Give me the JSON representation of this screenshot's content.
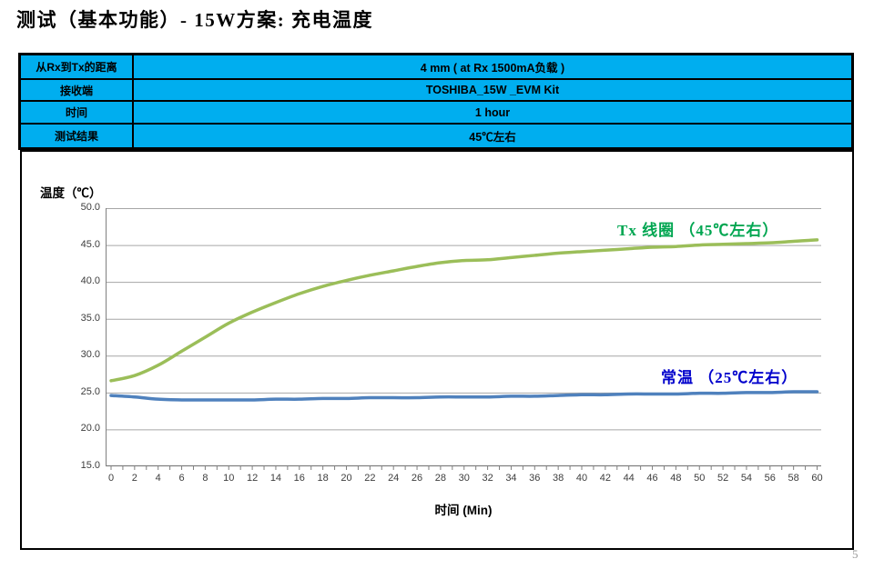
{
  "title": "测试（基本功能）- 15W方案: 充电温度",
  "page_number": "5",
  "info_table": {
    "fill_color": "#00AEEF",
    "rows": [
      {
        "label": "从Rx到Tx的距离",
        "value": "4 mm ( at Rx 1500mA负载 )"
      },
      {
        "label": "接收端",
        "value": "TOSHIBA_15W _EVM Kit"
      },
      {
        "label": "时间",
        "value": "1 hour"
      },
      {
        "label": "测试结果",
        "value": "45℃左右"
      }
    ]
  },
  "chart_data": {
    "type": "line",
    "title": "",
    "xlabel": "时间 (Min)",
    "ylabel": "温度（℃）",
    "ylim": [
      15,
      50
    ],
    "ytick_step": 5,
    "xtick_step": 2,
    "minor_xtick_step": 1,
    "grid": "horizontal",
    "legend_position": "none",
    "axis_color": "#808080",
    "grid_color": "#A6A6A6",
    "x": [
      0,
      2,
      4,
      6,
      8,
      10,
      12,
      14,
      16,
      18,
      20,
      22,
      24,
      26,
      28,
      30,
      32,
      34,
      36,
      38,
      40,
      42,
      44,
      46,
      48,
      50,
      52,
      54,
      56,
      58,
      60
    ],
    "series": [
      {
        "name": "Tx 线圈",
        "color": "#9BBE59",
        "values": [
          26.6,
          27.3,
          28.7,
          30.6,
          32.5,
          34.4,
          35.9,
          37.2,
          38.4,
          39.4,
          40.2,
          40.9,
          41.5,
          42.1,
          42.6,
          42.9,
          43.0,
          43.3,
          43.6,
          43.9,
          44.1,
          44.3,
          44.5,
          44.7,
          44.8,
          45.0,
          45.1,
          45.2,
          45.3,
          45.5,
          45.7
        ]
      },
      {
        "name": "常温",
        "color": "#4F81BD",
        "values": [
          24.6,
          24.4,
          24.1,
          24.0,
          24.0,
          24.0,
          24.0,
          24.1,
          24.1,
          24.2,
          24.2,
          24.3,
          24.3,
          24.3,
          24.4,
          24.4,
          24.4,
          24.5,
          24.5,
          24.6,
          24.7,
          24.7,
          24.8,
          24.8,
          24.8,
          24.9,
          24.9,
          25.0,
          25.0,
          25.1,
          25.1
        ]
      }
    ],
    "annotations": [
      {
        "text": "Tx 线圈 （45℃左右）",
        "color": "#00A651"
      },
      {
        "text": "常温 （25℃左右）",
        "color": "#0000CC"
      }
    ]
  }
}
